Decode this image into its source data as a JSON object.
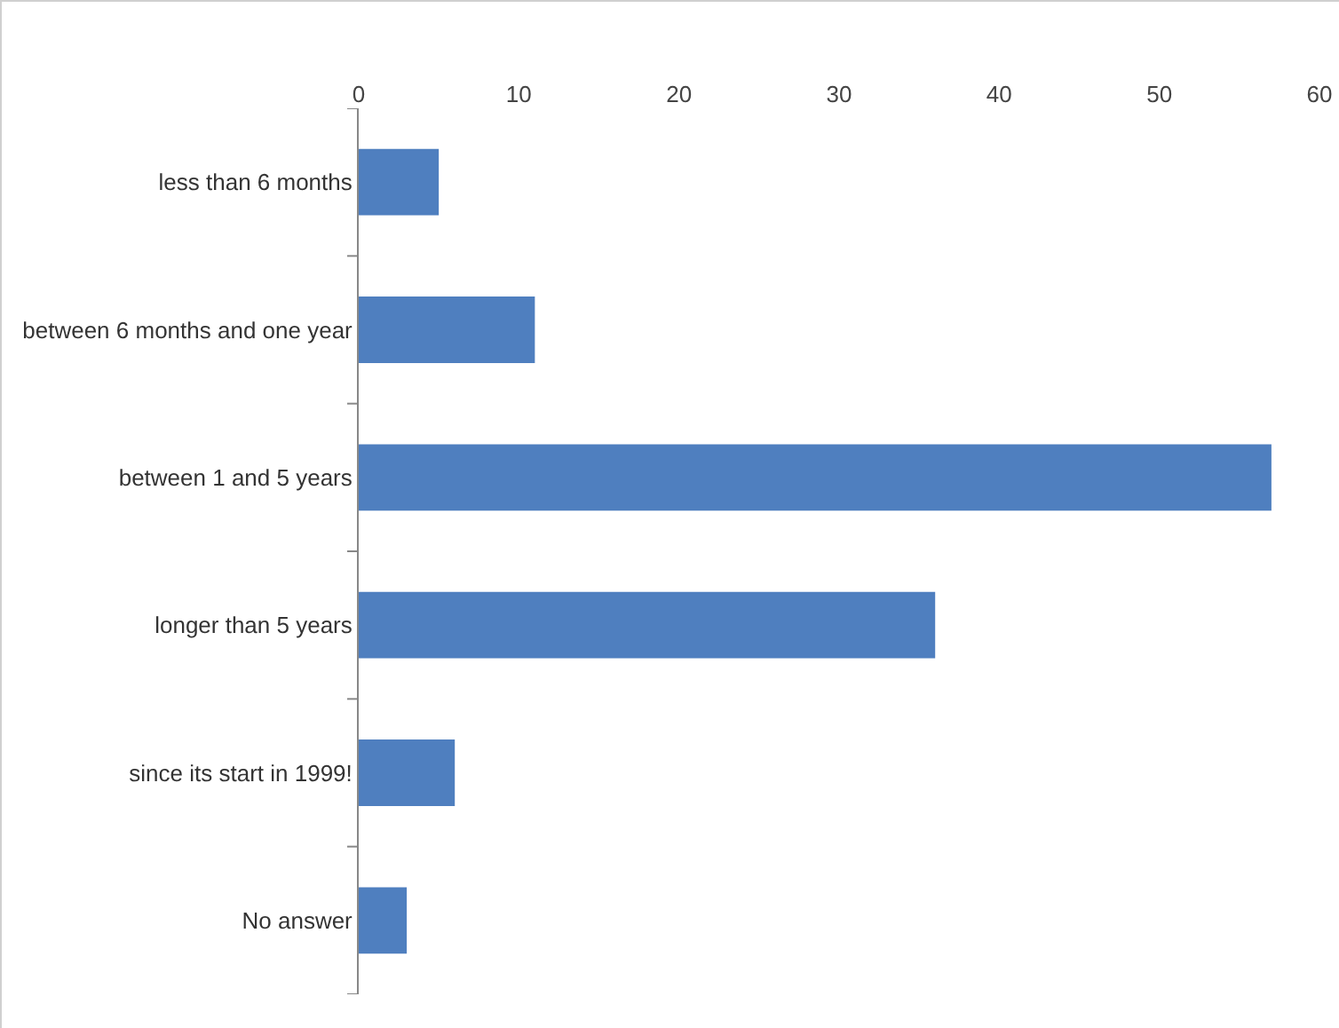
{
  "chart_data": {
    "type": "bar",
    "orientation": "horizontal",
    "categories": [
      "less than 6 months",
      "between 6 months and one year",
      "between 1 and 5 years",
      "longer than 5 years",
      "since its start in 1999!",
      "No answer"
    ],
    "values": [
      5,
      11,
      57,
      36,
      6,
      3
    ],
    "color": "#4f7fbf",
    "xlim": [
      0,
      60
    ],
    "xticks": [
      0,
      10,
      20,
      30,
      40,
      50,
      60
    ],
    "grid": false,
    "legend": false
  }
}
